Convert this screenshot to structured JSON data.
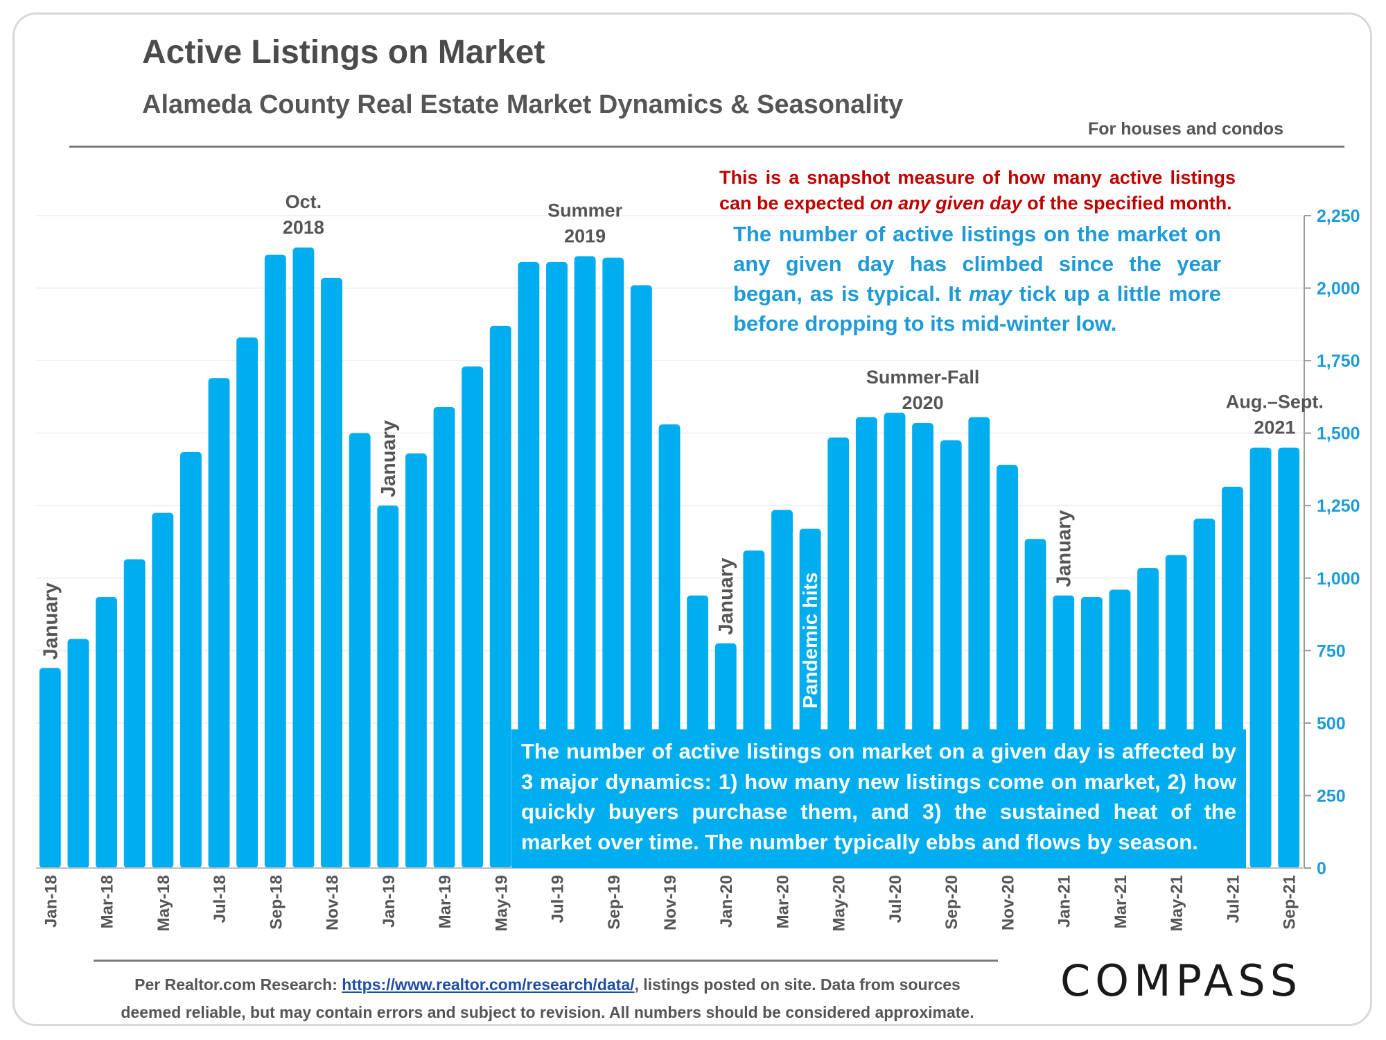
{
  "header": {
    "title": "Active Listings on Market",
    "subtitle": "Alameda County Real Estate Market Dynamics & Seasonality",
    "scope": "For houses and condos"
  },
  "notes": {
    "red_part1": "This is a snapshot measure of how many active listings can be expected ",
    "red_emphasis": "on any given day",
    "red_part2": " of the specified month.",
    "blue_part1": "The number of active listings on the market on any given day has climbed since the year began, as is typical. It ",
    "blue_emphasis": "may",
    "blue_part2": " tick up a little more before dropping to its mid-winter low.",
    "box": "The number of active listings on market on a given day is affected by 3 major dynamics: 1) how many new listings come on market, 2) how quickly buyers purchase them, and 3) the sustained heat of the market over time. The number typically ebbs and flows by season."
  },
  "footer": {
    "source_prefix": "Per Realtor.com Research: ",
    "source_link": "https://www.realtor.com/research/data/",
    "source_suffix": ", listings posted on site. Data from sources",
    "source_line2": "deemed reliable, but may contain errors and subject to revision. All numbers should be considered approximate.",
    "logo": "COMPASS"
  },
  "chart_data": {
    "type": "bar",
    "title": "Active Listings on Market",
    "ylim": [
      0,
      2250
    ],
    "yticks": [
      0,
      250,
      500,
      750,
      1000,
      1250,
      1500,
      1750,
      2000,
      2250
    ],
    "y_axis_side": "right",
    "bar_color": "#00adef",
    "categories": [
      "Jan-18",
      "Feb-18",
      "Mar-18",
      "Apr-18",
      "May-18",
      "Jun-18",
      "Jul-18",
      "Aug-18",
      "Sep-18",
      "Oct-18",
      "Nov-18",
      "Dec-18",
      "Jan-19",
      "Feb-19",
      "Mar-19",
      "Apr-19",
      "May-19",
      "Jun-19",
      "Jul-19",
      "Aug-19",
      "Sep-19",
      "Oct-19",
      "Nov-19",
      "Dec-19",
      "Jan-20",
      "Feb-20",
      "Mar-20",
      "Apr-20",
      "May-20",
      "Jun-20",
      "Jul-20",
      "Aug-20",
      "Sep-20",
      "Oct-20",
      "Nov-20",
      "Dec-20",
      "Jan-21",
      "Feb-21",
      "Mar-21",
      "Apr-21",
      "May-21",
      "Jun-21",
      "Jul-21",
      "Aug-21",
      "Sep-21"
    ],
    "x_tick_labels": [
      "Jan-18",
      "",
      "Mar-18",
      "",
      "May-18",
      "",
      "Jul-18",
      "",
      "Sep-18",
      "",
      "Nov-18",
      "",
      "Jan-19",
      "",
      "Mar-19",
      "",
      "May-19",
      "",
      "Jul-19",
      "",
      "Sep-19",
      "",
      "Nov-19",
      "",
      "Jan-20",
      "",
      "Mar-20",
      "",
      "May-20",
      "",
      "Jul-20",
      "",
      "Sep-20",
      "",
      "Nov-20",
      "",
      "Jan-21",
      "",
      "Mar-21",
      "",
      "May-21",
      "",
      "Jul-21",
      "",
      "Sep-21"
    ],
    "values": [
      690,
      790,
      935,
      1065,
      1225,
      1435,
      1690,
      1830,
      2115,
      2140,
      2035,
      1500,
      1250,
      1430,
      1590,
      1730,
      1870,
      2090,
      2090,
      2110,
      2105,
      2010,
      1530,
      940,
      775,
      1095,
      1235,
      1170,
      1485,
      1555,
      1570,
      1535,
      1475,
      1555,
      1390,
      1135,
      940,
      935,
      960,
      1035,
      1080,
      1205,
      1315,
      1450,
      1450
    ],
    "annotations": [
      {
        "label": "January",
        "index": 0,
        "vertical": true
      },
      {
        "label": "Oct.\n2018",
        "index": 9
      },
      {
        "label": "January",
        "index": 12,
        "vertical": true
      },
      {
        "label": "Summer\n2019",
        "index": 19
      },
      {
        "label": "January",
        "index": 24,
        "vertical": true
      },
      {
        "label": "Pandemic hits",
        "index": 27,
        "vertical": true,
        "inside": true
      },
      {
        "label": "Summer-Fall\n2020",
        "index": 31
      },
      {
        "label": "January",
        "index": 36,
        "vertical": true
      },
      {
        "label": "Aug.–Sept.\n2021",
        "index": 43.5
      }
    ]
  }
}
